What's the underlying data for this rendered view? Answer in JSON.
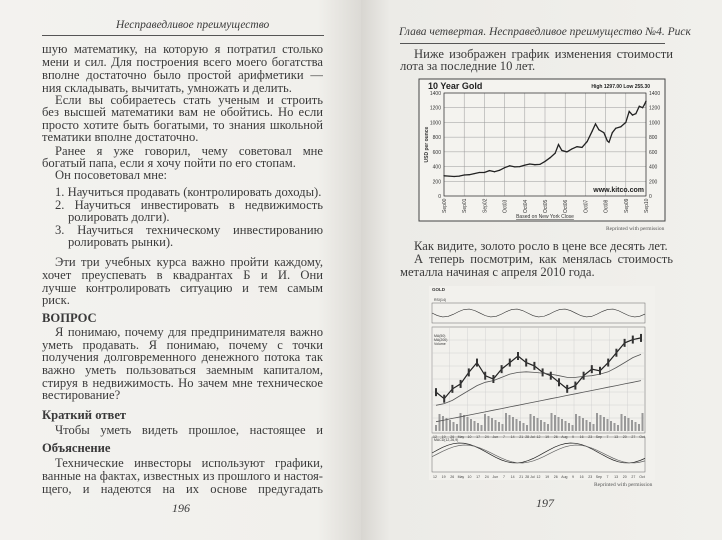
{
  "left_page": {
    "header": "Несправедливое преимущество",
    "page_number": "196",
    "lines": [
      "шую математику, на которую я потратил столько вре-",
      "мени и сил. Для построения всего моего богатства мне",
      "вполне достаточно было простой арифметики — уме-",
      "ния складывать, вычитать, умножать и делить.",
      "Если вы собираетесь стать ученым и строить ракеты,",
      "без высшей математики вам не обойтись. Но если вы",
      "просто хотите быть богатыми, то знания школьной ма-",
      "тематики вполне достаточно.",
      "Ранее я уже говорил, чему советовал мне научиться",
      "богатый папа, если я хочу пойти по его стопам.",
      "Он посоветовал мне:",
      "1. Научиться продавать (контролировать доходы).",
      "2. Научиться инвестировать в недвижимость (конт-",
      "ролировать долги).",
      "3. Научиться техническому инвестированию (конт-",
      "ролировать рынки).",
      "Эти три учебных курса важно пройти каждому, кто",
      "хочет преуспевать в квадрантах Б и И. Они позволяют",
      "лучше контролировать ситуацию и тем самым снизить",
      "риск.",
      "ВОПРОС",
      "Я понимаю, почему для предпринимателя важно",
      "уметь продавать. Я понимаю, почему с точки зрения",
      "получения долговременного денежного потока так",
      "важно уметь пользоваться заемным капиталом, инве-",
      "стируя в недвижимость. Но зачем мне техническое ин-",
      "вестирование?",
      "Краткий ответ",
      "Чтобы уметь видеть прошлое, настоящее и будущее.",
      "Объяснение",
      "Технические инвесторы используют графики, осно-",
      "ванные на фактах, известных из прошлого и настоя-",
      "щего, и надеются на их основе предугадать будущее."
    ]
  },
  "right_page": {
    "header": "Глава четвертая. Несправедливое преимущество №4. Риск",
    "page_number": "197",
    "lines": [
      "Ниже изображен график изменения стоимости зо-",
      "лота за последние 10 лет.",
      "Как видите, золото росло в цене все десять лет.",
      "А теперь посмотрим, как менялась стоимость этого",
      "металла начиная с апреля 2010 года."
    ],
    "credit_1": "Reprinted with permission",
    "credit_2": "Reprinted with permission"
  },
  "chart_data": [
    {
      "type": "line",
      "title": "10 Year Gold",
      "subtitle": "High 1297.00 Low 255.30",
      "ylabel": "USD per ounce",
      "xlabel": "Based on New York Close",
      "watermark": "www.kitco.com",
      "ylim": [
        0,
        1400
      ],
      "yticks": [
        "0",
        "200",
        "400",
        "600",
        "800",
        "1000",
        "1200",
        "1400"
      ],
      "xticks": [
        "Sep00",
        "Sep01",
        "Sep02",
        "Oct03",
        "Oct04",
        "Oct05",
        "Oct06",
        "Oct07",
        "Oct08",
        "Sep09",
        "Sep10"
      ],
      "grid": true,
      "color": "#222222",
      "series": [
        {
          "x": [
            "2000-09",
            "2000-12",
            "2001-03",
            "2001-06",
            "2001-09",
            "2001-12",
            "2002-03",
            "2002-06",
            "2002-09",
            "2002-12",
            "2003-03",
            "2003-06",
            "2003-09",
            "2003-12",
            "2004-03",
            "2004-06",
            "2004-09",
            "2004-12",
            "2005-03",
            "2005-06",
            "2005-09",
            "2005-12",
            "2006-03",
            "2006-05",
            "2006-07",
            "2006-10",
            "2007-01",
            "2007-04",
            "2007-07",
            "2007-10",
            "2008-01",
            "2008-03",
            "2008-05",
            "2008-08",
            "2008-10",
            "2008-11",
            "2009-01",
            "2009-03",
            "2009-06",
            "2009-09",
            "2009-11",
            "2010-01",
            "2010-03",
            "2010-05",
            "2010-07",
            "2010-08",
            "2010-09"
          ],
          "y": [
            275,
            270,
            265,
            270,
            285,
            290,
            305,
            320,
            320,
            345,
            330,
            350,
            385,
            410,
            395,
            400,
            420,
            435,
            425,
            430,
            470,
            520,
            580,
            700,
            620,
            600,
            640,
            670,
            660,
            740,
            880,
            980,
            900,
            860,
            750,
            730,
            860,
            920,
            940,
            1000,
            1150,
            1100,
            1120,
            1220,
            1200,
            1240,
            1290
          ]
        }
      ]
    },
    {
      "type": "line",
      "title": "GOLD",
      "indicators": [
        "RSI(14)",
        "MA(50)",
        "MA(200)",
        "Volume",
        "MACD(12,26,9)"
      ],
      "xticks": [
        "12",
        "19",
        "26",
        "May",
        "10",
        "17",
        "24",
        "Jun",
        "7",
        "14",
        "21",
        "28 Jul",
        "12",
        "19",
        "26",
        "Aug",
        "9",
        "16",
        "23",
        "Sep",
        "7",
        "13",
        "20",
        "27",
        "Oct"
      ],
      "grid": true,
      "series": [
        {
          "name": "GOLD",
          "y": [
            1150,
            1130,
            1160,
            1175,
            1210,
            1240,
            1200,
            1190,
            1220,
            1240,
            1260,
            1240,
            1230,
            1210,
            1200,
            1180,
            1160,
            1170,
            1200,
            1220,
            1215,
            1240,
            1270,
            1300,
            1310,
            1315
          ]
        },
        {
          "name": "MA(50)",
          "y": [
            1110,
            1115,
            1125,
            1140,
            1155,
            1170,
            1180,
            1185,
            1195,
            1205,
            1210,
            1212,
            1210,
            1208,
            1205,
            1200,
            1195,
            1195,
            1198,
            1200,
            1205,
            1212,
            1225,
            1240,
            1255,
            1265
          ]
        },
        {
          "name": "MA(200)",
          "y": [
            1060,
            1065,
            1070,
            1075,
            1080,
            1085,
            1090,
            1095,
            1100,
            1105,
            1110,
            1115,
            1120,
            1125,
            1130,
            1135,
            1140,
            1145,
            1150,
            1155,
            1160,
            1165,
            1170,
            1175,
            1180,
            1185
          ]
        }
      ]
    }
  ]
}
